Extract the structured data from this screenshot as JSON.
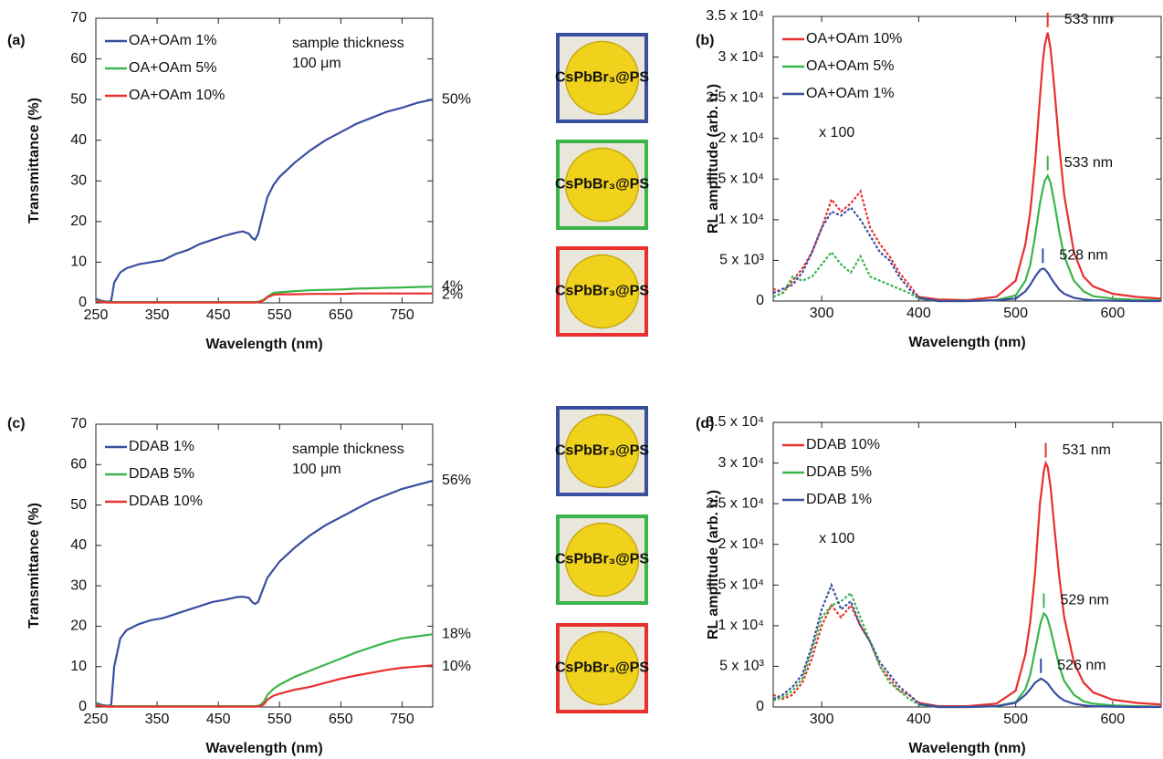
{
  "chart_data": [
    {
      "type": "line",
      "panel": "(a)",
      "x_label": "Wavelength (nm)",
      "y_label": "Transmittance (%)",
      "annotation": [
        "sample thickness",
        "100 μm"
      ],
      "legend": "upper left",
      "xlim": [
        250,
        800
      ],
      "xticks": [
        250,
        350,
        450,
        550,
        650,
        750
      ],
      "ylim": [
        0,
        70
      ],
      "yticks": [
        0,
        10,
        20,
        30,
        40,
        50,
        60,
        70
      ],
      "x": [
        250,
        260,
        270,
        275,
        280,
        290,
        300,
        320,
        340,
        360,
        380,
        400,
        420,
        440,
        460,
        480,
        490,
        500,
        505,
        510,
        515,
        520,
        525,
        530,
        540,
        550,
        575,
        600,
        625,
        650,
        675,
        700,
        725,
        750,
        775,
        800
      ],
      "series": [
        {
          "name": "OA+OAm 1%",
          "color": "#3a4ea0",
          "end_label": {
            "value": 50,
            "label": "50%"
          },
          "values": [
            1,
            0.5,
            0.3,
            0.5,
            5,
            7.5,
            8.5,
            9.5,
            10,
            10.5,
            12,
            13,
            14.5,
            15.5,
            16.5,
            17.3,
            17.6,
            17,
            16,
            15.5,
            17,
            20,
            23,
            26,
            29,
            31,
            34.5,
            37.5,
            40,
            42,
            44,
            45.5,
            47,
            48,
            49.2,
            50
          ]
        },
        {
          "name": "OA+OAm 5%",
          "color": "#3ab54a",
          "end_label": {
            "value": 4,
            "label": "4%"
          },
          "values": [
            0.6,
            0.3,
            0.2,
            0.2,
            0.2,
            0.2,
            0.2,
            0.2,
            0.2,
            0.2,
            0.2,
            0.2,
            0.2,
            0.2,
            0.2,
            0.2,
            0.2,
            0.2,
            0.2,
            0.2,
            0.3,
            0.5,
            0.9,
            1.5,
            2.5,
            2.6,
            2.9,
            3.1,
            3.2,
            3.3,
            3.5,
            3.6,
            3.7,
            3.8,
            3.9,
            4
          ]
        },
        {
          "name": "OA+OAm 10%",
          "color": "#e8302e",
          "end_label": {
            "value": 2,
            "label": "2%"
          },
          "values": [
            0.4,
            0.2,
            0.1,
            0.1,
            0.1,
            0.1,
            0.1,
            0.1,
            0.1,
            0.1,
            0.1,
            0.1,
            0.1,
            0.1,
            0.1,
            0.1,
            0.1,
            0.1,
            0.1,
            0.1,
            0.2,
            0.3,
            0.7,
            1.4,
            2,
            2.1,
            2.1,
            2.2,
            2.2,
            2.2,
            2.3,
            2.3,
            2.3,
            2.3,
            2.3,
            2.3
          ]
        }
      ]
    },
    {
      "type": "line",
      "panel": "(b)",
      "x_label": "Wavelength (nm)",
      "y_label": "RL amplitude (arb. u.)",
      "legend": "upper left",
      "magnified": {
        "label": "x 100",
        "xlim": [
          250,
          400
        ]
      },
      "xlim": [
        250,
        650
      ],
      "xticks": [
        300,
        400,
        500,
        600
      ],
      "ylim": [
        0,
        35000
      ],
      "yticks": [
        0,
        {
          "value": 5000,
          "label": "5 x 10³"
        },
        {
          "value": 10000,
          "label": "1 x 10⁴"
        },
        {
          "value": 15000,
          "label": "1.5 x 10⁴"
        },
        {
          "value": 20000,
          "label": "2 x 10⁴"
        },
        {
          "value": 25000,
          "label": "2.5 x 10⁴"
        },
        {
          "value": 30000,
          "label": "3 x 10⁴"
        },
        {
          "value": 35000,
          "label": "3.5 x 10⁴"
        }
      ],
      "x": [
        250,
        260,
        270,
        280,
        290,
        300,
        310,
        320,
        330,
        340,
        350,
        360,
        370,
        380,
        390,
        400,
        420,
        450,
        480,
        500,
        510,
        515,
        520,
        525,
        528,
        530,
        533,
        536,
        540,
        545,
        550,
        560,
        570,
        580,
        600,
        625,
        650
      ],
      "series": [
        {
          "name": "OA+OAm 10%",
          "color": "#e8302e",
          "peak": {
            "x": 533,
            "label": "533 nm"
          },
          "values": [
            1500,
            1000,
            2500,
            4000,
            6000,
            9000,
            12500,
            11000,
            12000,
            13500,
            9000,
            7000,
            5500,
            3500,
            2000,
            500,
            200,
            100,
            500,
            2500,
            7000,
            11000,
            17000,
            25000,
            29500,
            31500,
            33000,
            31000,
            26000,
            19000,
            13000,
            6000,
            3000,
            1800,
            900,
            500,
            300
          ]
        },
        {
          "name": "OA+OAm 5%",
          "color": "#3ab54a",
          "peak": {
            "x": 533,
            "label": "533 nm"
          },
          "values": [
            500,
            1000,
            3000,
            2500,
            3000,
            4500,
            6000,
            4500,
            3500,
            5500,
            3000,
            2500,
            2000,
            1500,
            1000,
            300,
            0,
            0,
            100,
            700,
            2500,
            4500,
            8000,
            12000,
            13800,
            14800,
            15400,
            14500,
            12000,
            8500,
            5500,
            2500,
            1200,
            600,
            300,
            150,
            100
          ]
        },
        {
          "name": "OA+OAm 1%",
          "color": "#3a4ea0",
          "peak": {
            "x": 528,
            "label": "528 nm"
          },
          "values": [
            1000,
            1500,
            2000,
            3500,
            6000,
            9000,
            11000,
            10500,
            11500,
            10000,
            8000,
            6000,
            5000,
            3000,
            1500,
            400,
            0,
            0,
            100,
            300,
            1200,
            2000,
            3000,
            3800,
            4000,
            3900,
            3500,
            2900,
            2200,
            1400,
            900,
            400,
            200,
            100,
            50,
            0,
            0
          ]
        }
      ]
    },
    {
      "type": "line",
      "panel": "(c)",
      "x_label": "Wavelength (nm)",
      "y_label": "Transmittance (%)",
      "annotation": [
        "sample thickness",
        "100 μm"
      ],
      "legend": "upper left",
      "xlim": [
        250,
        800
      ],
      "xticks": [
        250,
        350,
        450,
        550,
        650,
        750
      ],
      "ylim": [
        0,
        70
      ],
      "yticks": [
        0,
        10,
        20,
        30,
        40,
        50,
        60,
        70
      ],
      "x": [
        250,
        260,
        270,
        275,
        280,
        290,
        300,
        320,
        340,
        360,
        380,
        400,
        420,
        440,
        460,
        480,
        490,
        500,
        505,
        510,
        515,
        520,
        525,
        530,
        540,
        550,
        575,
        600,
        625,
        650,
        675,
        700,
        725,
        750,
        775,
        800
      ],
      "series": [
        {
          "name": "DDAB 1%",
          "color": "#3a4ea0",
          "end_label": {
            "value": 56,
            "label": "56%"
          },
          "values": [
            1,
            0.5,
            0.3,
            0.5,
            10,
            17,
            19,
            20.5,
            21.5,
            22,
            23,
            24,
            25,
            26,
            26.5,
            27.2,
            27.3,
            27,
            26,
            25.5,
            26,
            28,
            30,
            32,
            34,
            36,
            39.5,
            42.5,
            45,
            47,
            49,
            51,
            52.5,
            54,
            55,
            56
          ]
        },
        {
          "name": "DDAB 5%",
          "color": "#3ab54a",
          "end_label": {
            "value": 18,
            "label": "18%"
          },
          "values": [
            0.8,
            0.3,
            0.2,
            0.2,
            0.2,
            0.2,
            0.2,
            0.2,
            0.2,
            0.2,
            0.2,
            0.2,
            0.2,
            0.2,
            0.2,
            0.2,
            0.2,
            0.2,
            0.2,
            0.2,
            0.3,
            0.6,
            1.5,
            3,
            4.5,
            5.5,
            7.5,
            9,
            10.5,
            12,
            13.5,
            14.8,
            16,
            17,
            17.5,
            18
          ]
        },
        {
          "name": "DDAB 10%",
          "color": "#e8302e",
          "end_label": {
            "value": 10,
            "label": "10%"
          },
          "values": [
            0.5,
            0.2,
            0.1,
            0.1,
            0.1,
            0.1,
            0.1,
            0.1,
            0.1,
            0.1,
            0.1,
            0.1,
            0.1,
            0.1,
            0.1,
            0.1,
            0.1,
            0.1,
            0.1,
            0.1,
            0.2,
            0.3,
            0.8,
            1.8,
            2.8,
            3.3,
            4.3,
            5,
            6,
            7,
            7.8,
            8.5,
            9.2,
            9.7,
            10,
            10.3
          ]
        }
      ]
    },
    {
      "type": "line",
      "panel": "(d)",
      "x_label": "Wavelength (nm)",
      "y_label": "RL amplitude (arb. u.)",
      "legend": "upper left",
      "magnified": {
        "label": "x 100",
        "xlim": [
          250,
          400
        ]
      },
      "xlim": [
        250,
        650
      ],
      "xticks": [
        300,
        400,
        500,
        600
      ],
      "ylim": [
        0,
        35000
      ],
      "yticks": [
        0,
        {
          "value": 5000,
          "label": "5 x 10³"
        },
        {
          "value": 10000,
          "label": "1 x 10⁴"
        },
        {
          "value": 15000,
          "label": "1.5 x 10⁴"
        },
        {
          "value": 20000,
          "label": "2 x 10⁴"
        },
        {
          "value": 25000,
          "label": "2.5 x 10⁴"
        },
        {
          "value": 30000,
          "label": "3 x 10⁴"
        },
        {
          "value": 35000,
          "label": "3.5 x 10⁴"
        }
      ],
      "x": [
        250,
        260,
        270,
        280,
        290,
        300,
        310,
        320,
        330,
        340,
        350,
        360,
        370,
        380,
        390,
        400,
        420,
        450,
        480,
        500,
        510,
        515,
        520,
        525,
        526,
        529,
        531,
        533,
        536,
        540,
        545,
        550,
        560,
        570,
        580,
        600,
        625,
        650
      ],
      "series": [
        {
          "name": "DDAB 10%",
          "color": "#e8302e",
          "peak": {
            "x": 531,
            "label": "531 nm"
          },
          "values": [
            1500,
            1000,
            1500,
            3000,
            6000,
            10000,
            12500,
            11000,
            12500,
            10000,
            8000,
            5000,
            3500,
            2000,
            1500,
            500,
            100,
            100,
            400,
            2000,
            6500,
            10500,
            16500,
            25000,
            26000,
            29000,
            30000,
            29500,
            27000,
            22000,
            16000,
            11000,
            5500,
            3000,
            1800,
            900,
            500,
            300
          ]
        },
        {
          "name": "DDAB 5%",
          "color": "#3ab54a",
          "peak": {
            "x": 529,
            "label": "529 nm"
          },
          "values": [
            800,
            1200,
            2000,
            3500,
            7000,
            11000,
            12500,
            13000,
            14000,
            11000,
            8000,
            5000,
            3000,
            2000,
            1000,
            300,
            0,
            0,
            100,
            600,
            2200,
            4000,
            7000,
            10000,
            10500,
            11500,
            11300,
            10800,
            9500,
            7500,
            5000,
            3200,
            1500,
            700,
            400,
            200,
            100,
            50
          ]
        },
        {
          "name": "DDAB 1%",
          "color": "#3a4ea0",
          "peak": {
            "x": 526,
            "label": "526 nm"
          },
          "values": [
            1000,
            1500,
            2500,
            4000,
            7500,
            12000,
            15000,
            12000,
            13000,
            10000,
            8000,
            5500,
            4000,
            2500,
            1500,
            400,
            0,
            0,
            100,
            500,
            1500,
            2200,
            3000,
            3400,
            3500,
            3300,
            3100,
            2900,
            2400,
            1800,
            1200,
            800,
            400,
            200,
            100,
            50,
            0,
            0
          ]
        }
      ]
    }
  ],
  "photos": {
    "label": "CsPbBr₃@PS",
    "frames": [
      "#3a4ea0",
      "#3ab54a",
      "#e8302e",
      "#3a4ea0",
      "#3ab54a",
      "#e8302e"
    ]
  }
}
